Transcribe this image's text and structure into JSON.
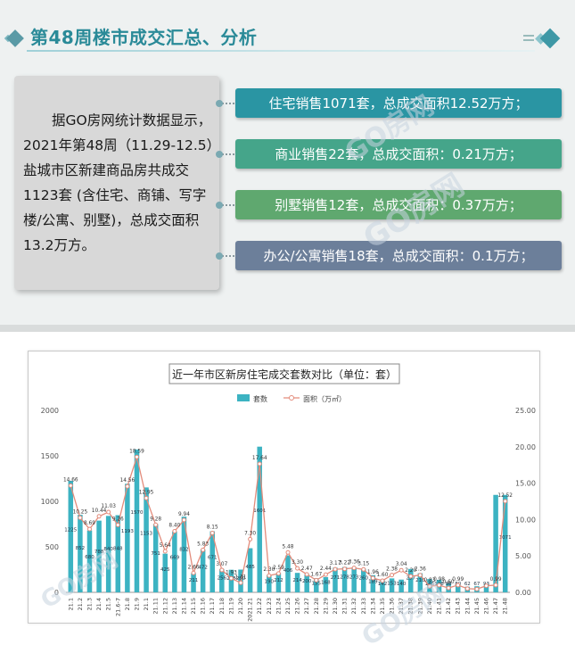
{
  "header": {
    "title": "第48周楼市成交汇总、分析"
  },
  "summary": {
    "text": "据GO房网统计数据显示，2021年第48周（11.29-12.5）盐城市区新建商品房共成交1123套 (含住宅、商铺、写字楼/公寓、别墅)，总成交面积13.2万方。"
  },
  "stats": [
    {
      "text": "住宅销售1071套，总成交面积12.52万方；",
      "color": "#2a95a3"
    },
    {
      "text": "商业销售22套，总成交面积：0.21万方；",
      "color": "#45a58a"
    },
    {
      "text": "别墅销售12套，总成交面积：0.37万方；",
      "color": "#5fa86f"
    },
    {
      "text": "办公/公寓销售18套，总成交面积：0.1万方；",
      "color": "#6c7f9a"
    }
  ],
  "watermark": "GO房网",
  "colors": {
    "bar": "#3cb3c2",
    "line": "#e38c7c",
    "accent": "#2a8a98"
  },
  "chart_data": {
    "type": "bar",
    "title": "近一年市区新房住宅成交套数对比（单位：套）",
    "legend_position": "top-center",
    "grid": false,
    "categories": [
      "21.1",
      "21.2",
      "21.3",
      "21.4",
      "21.5",
      "21.6-7",
      "21.8",
      "21.9",
      "21.1",
      "21.11",
      "21.12",
      "21.13",
      "21.14",
      "21.15",
      "21.16",
      "21.17",
      "21.18",
      "21.19",
      "21.20",
      "2021.21",
      "21.22",
      "21.23",
      "21.24",
      "21.25",
      "21.26",
      "21.27",
      "21.28",
      "21.29",
      "21.30",
      "21.31",
      "21.32",
      "21.33",
      "21.34",
      "21.35",
      "21.36",
      "21.37",
      "21.38",
      "21.39",
      "21.40",
      "21.41",
      "21.42",
      "21.43",
      "21.44",
      "21.45",
      "21.46",
      "21.47",
      "21.48"
    ],
    "series": [
      {
        "name": "套数",
        "kind": "bar",
        "axis": "left",
        "values": [
          1225,
          852,
          680,
          788,
          840,
          848,
          1193,
          1570,
          1153,
          751,
          425,
          669,
          832,
          211,
          472,
          671,
          256,
          248,
          250,
          485,
          1601,
          190,
          212,
          406,
          214,
          200,
          155,
          168,
          271,
          278,
          273,
          260,
          189,
          142,
          153,
          140,
          257,
          210,
          146,
          138,
          98,
          80,
          62,
          67,
          93,
          1071,
          1071
        ],
        "labels": [
          "1225",
          "852",
          "680",
          "788",
          "840",
          "848",
          "1193",
          "1570",
          "1153",
          "751",
          "425",
          "669",
          "832",
          "211",
          "472",
          "671",
          "256",
          "248",
          "250",
          "485",
          "1601",
          "190",
          "212",
          "406",
          "214",
          "200",
          "155",
          "168",
          "271",
          "278",
          "273",
          "260",
          "189",
          "142",
          "153",
          "140",
          "257",
          "210",
          "146",
          "138",
          "98",
          "80",
          "62",
          "67",
          "93",
          "",
          "1071"
        ]
      },
      {
        "name": "面积（万㎡）",
        "kind": "line",
        "axis": "right",
        "values": [
          14.66,
          10.25,
          8.69,
          10.44,
          11.03,
          9.26,
          14.56,
          18.59,
          12.95,
          9.28,
          5.64,
          8.4,
          9.94,
          2.66,
          5.83,
          8.15,
          3.07,
          1.93,
          1.31,
          7.3,
          17.64,
          2.3,
          2.59,
          5.48,
          3.3,
          2.47,
          1.67,
          2.44,
          3.17,
          3.22,
          3.36,
          3.15,
          1.96,
          1.6,
          2.38,
          3.04,
          2.2,
          2.36,
          0.83,
          0.98,
          0.6,
          0.99,
          0.5,
          0.45,
          0.9,
          0.99,
          12.52
        ],
        "labels": [
          "14.66",
          "10.25",
          "8.69",
          "10.44",
          "11.03",
          "9.26",
          "14.56",
          "18.59",
          "12.95",
          "9.28",
          "5.64",
          "8.40",
          "9.94",
          "2.66",
          "5.83",
          "8.15",
          "3.07",
          "1.93",
          "1.31",
          "7.30",
          "17.64",
          "2.30",
          "2.59",
          "5.48",
          "3.30",
          "2.47",
          "1.67",
          "2.44",
          "3.17",
          "3.22",
          "3.36",
          "3.15",
          "1.96",
          "1.60",
          "2.38",
          "3.04",
          "2.20",
          "2.36",
          "0.83",
          "0.98",
          "0.60",
          "0.99",
          "",
          "",
          "",
          "0.99",
          "12.52"
        ]
      }
    ],
    "y_left": {
      "min": 0,
      "max": 2000,
      "ticks": [
        "0",
        "500",
        "1000",
        "1500",
        "2000"
      ]
    },
    "y_right": {
      "min": 0,
      "max": 25,
      "ticks": [
        "0.00",
        "5.00",
        "10.00",
        "15.00",
        "20.00",
        "25.00"
      ]
    }
  }
}
